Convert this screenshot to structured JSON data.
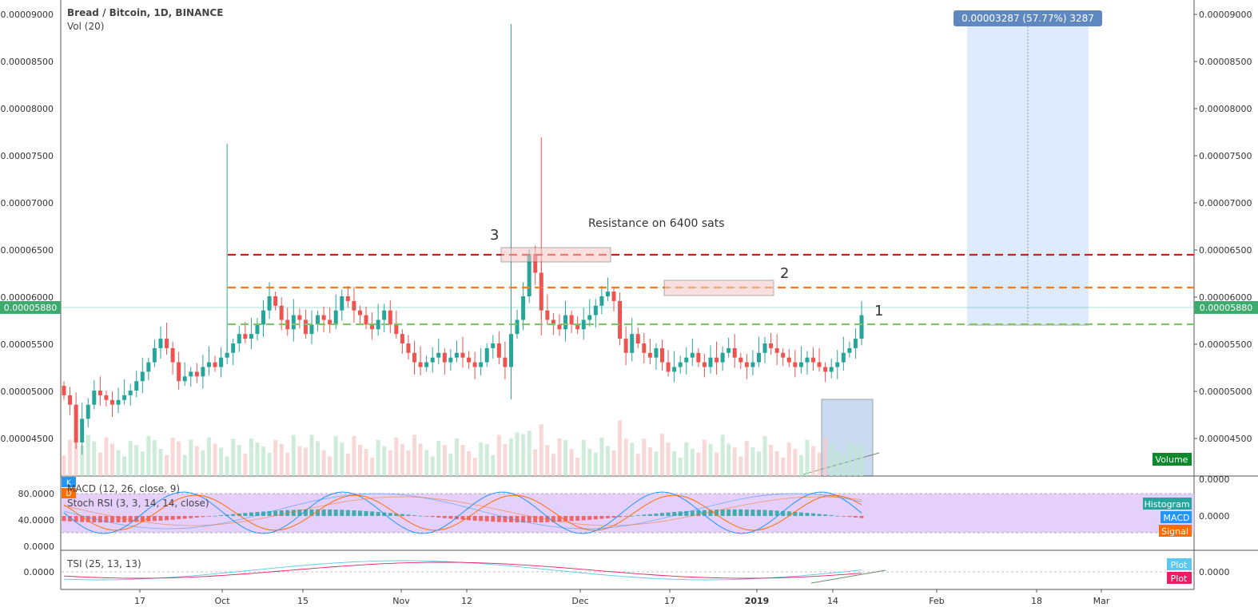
{
  "header": {
    "symbol_title": "Bread / Bitcoin, 1D, BINANCE",
    "volume_indicator": "Vol (20)"
  },
  "price_axis": {
    "ticks": [
      "0.00009000",
      "0.00008500",
      "0.00008000",
      "0.00007500",
      "0.00007000",
      "0.00006500",
      "0.00006000",
      "0.00005500",
      "0.00005000",
      "0.00004500"
    ],
    "current_price": "0.00005880"
  },
  "time_axis": {
    "ticks": [
      "17",
      "Oct",
      "15",
      "Nov",
      "12",
      "Dec",
      "17",
      "2019",
      "14",
      "Feb",
      "18",
      "Mar"
    ]
  },
  "annotations": {
    "resistance_text": "Resistance on 6400 sats",
    "wave_1": "1",
    "wave_2": "2",
    "wave_3": "3",
    "measure_label": "0.00003287 (57.77%) 3287",
    "volume_badge": "Volume"
  },
  "macd_panel": {
    "title": "MACD (12, 26, close, 9)",
    "stoch_title": "Stoch RSI (3, 3, 14, 14, close)",
    "left_ticks": [
      "80.0000",
      "40.0000",
      "0.0000"
    ],
    "right_ticks": [
      "0.0000",
      "0.0000"
    ],
    "legend": [
      "Histogram",
      "MACD",
      "Signal"
    ],
    "k_badge": "K",
    "d_badge": "D"
  },
  "tsi_panel": {
    "title": "TSI (25, 13, 13)",
    "left_tick": "0.0000",
    "right_tick": "0.0000",
    "legend": [
      "Plot",
      "Plot"
    ]
  },
  "colors": {
    "up": "#26a69a",
    "down": "#ef5350",
    "resistance_red": "#e0151b",
    "resistance_orange": "#f57c1f",
    "support_green": "#82c46c",
    "measure_blue": "#cfe3fb",
    "stoch_band": "#e1c8fb"
  },
  "chart_data": {
    "type": "candlestick",
    "title": "Bread / Bitcoin, 1D, BINANCE",
    "ylim": [
      4.18e-05,
      9.12e-05
    ],
    "x_range": [
      "2018-09-01",
      "2019-03-23"
    ],
    "levels": [
      {
        "name": "resistance",
        "value": 6.44e-05,
        "color": "red"
      },
      {
        "name": "mid",
        "value": 6.08e-05,
        "color": "orange"
      },
      {
        "name": "support",
        "value": 5.7e-05,
        "color": "green"
      }
    ],
    "current_price": 5.88e-05,
    "measure": {
      "from": 5.7e-05,
      "to": 8.99e-05,
      "change": "0.00003287 (57.77%) 3287"
    }
  }
}
